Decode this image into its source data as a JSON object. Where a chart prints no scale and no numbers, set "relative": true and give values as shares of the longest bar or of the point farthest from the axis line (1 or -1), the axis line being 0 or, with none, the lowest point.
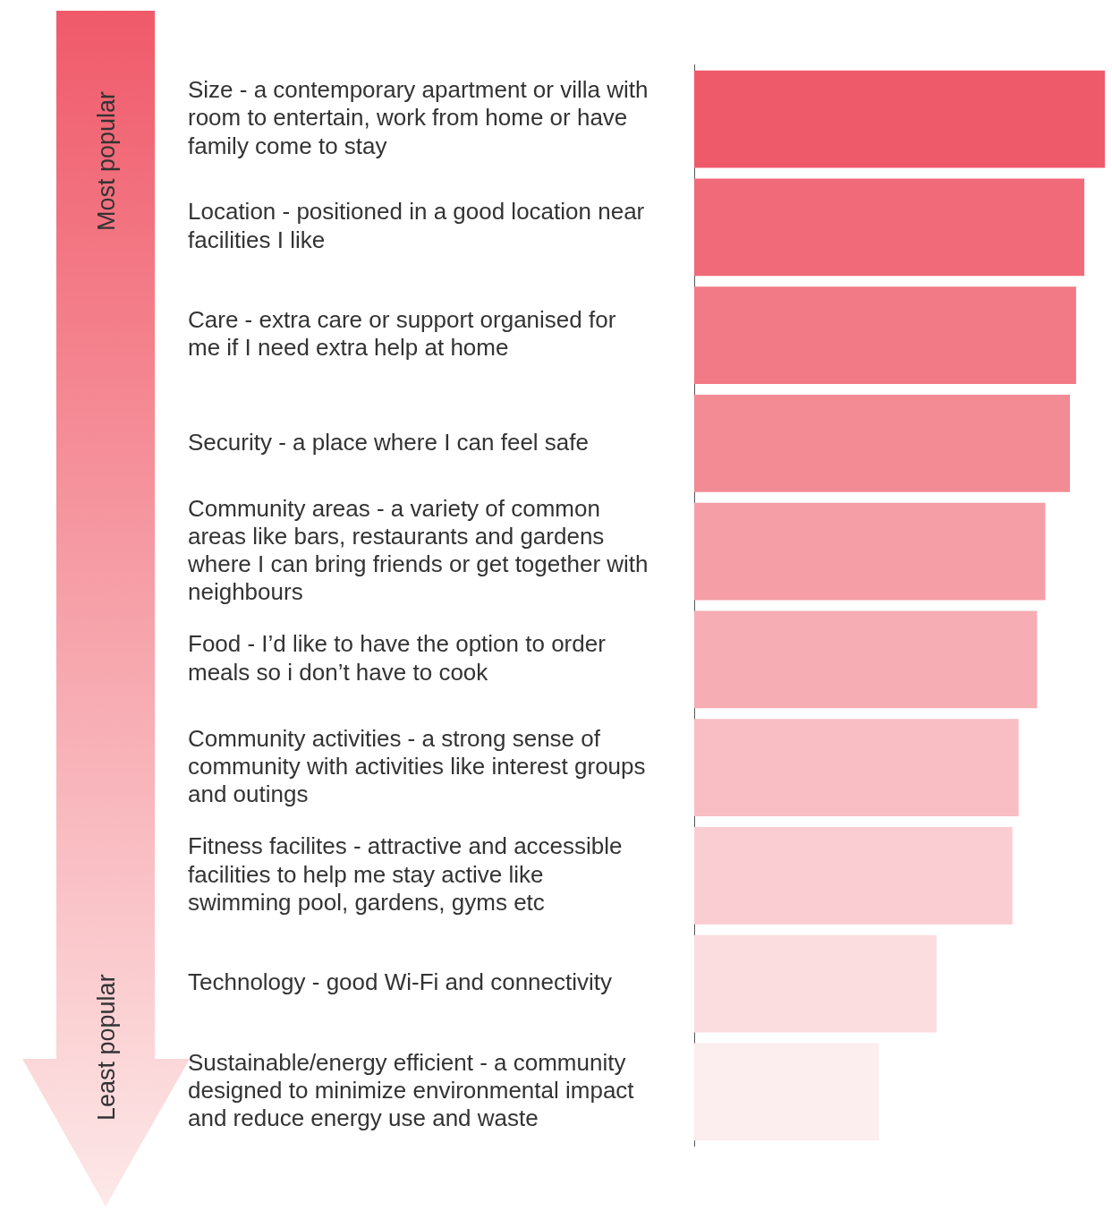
{
  "chart_data": {
    "type": "bar",
    "orientation": "horizontal",
    "relative": true,
    "categories": [
      "Size - a contemporary apartment or villa with room to entertain, work from home or have family come to stay",
      "Location - positioned in a good location near facilities I like",
      "Care - extra care or support organised for me if I need extra help at home",
      "Security - a place where I can feel safe",
      "Community areas - a variety of common areas like bars, restaurants and gardens where I can bring friends or get together with neighbours",
      "Food - I’d like to have the option to order meals so i don’t have to cook",
      "Community activities - a strong sense of community with activities like interest groups and outings",
      "Fitness facilites - attractive and accessible facilities to help me stay active like swimming pool, gardens, gyms etc",
      "Technology - good Wi-Fi and connectivity",
      "Sustainable/energy efficient - a community designed to minimize environmental impact and reduce energy use and waste"
    ],
    "values": [
      1,
      0.95,
      0.93,
      0.915,
      0.855,
      0.835,
      0.79,
      0.775,
      0.59,
      0.45
    ],
    "colors": [
      "#ef5a6b",
      "#f16a79",
      "#f27a86",
      "#f38b95",
      "#f59ea6",
      "#f6adb4",
      "#f8bec3",
      "#facdd2",
      "#fbdde0",
      "#fcedee"
    ],
    "annotations": [
      "Most popular",
      "Least popular"
    ]
  }
}
